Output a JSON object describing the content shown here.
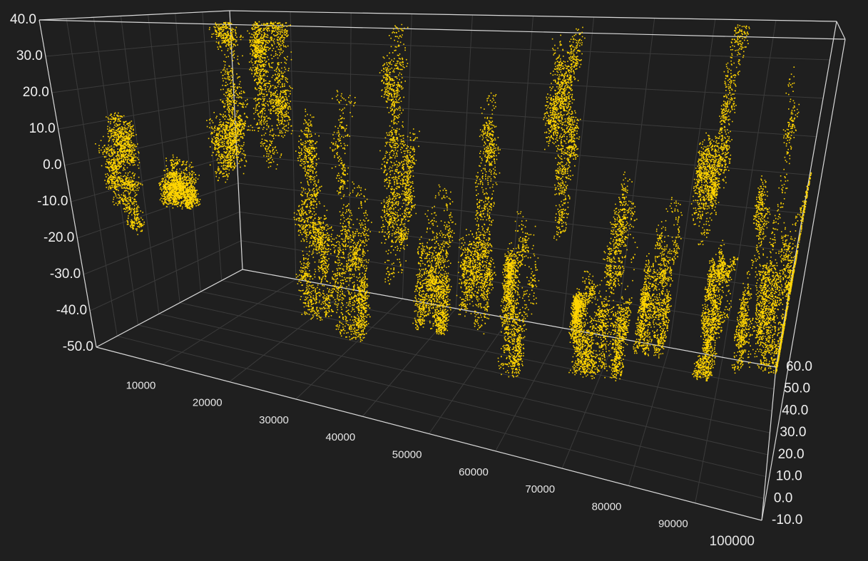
{
  "chart_data": {
    "type": "scatter",
    "projection": "3d",
    "title": "",
    "xlabel": "",
    "ylabel": "",
    "zlabel": "",
    "x_range": [
      0,
      100000
    ],
    "y_range": [
      -50,
      40
    ],
    "z_range": [
      -10,
      60
    ],
    "x_ticks": [
      "10000",
      "20000",
      "30000",
      "40000",
      "50000",
      "60000",
      "70000",
      "80000",
      "90000",
      "100000"
    ],
    "y_ticks": [
      "-50.0",
      "-40.0",
      "-30.0",
      "-20.0",
      "-10.0",
      "0.0",
      "10.0",
      "20.0",
      "30.0",
      "40.0"
    ],
    "z_ticks": [
      "-10.0",
      "0.0",
      "10.0",
      "20.0",
      "30.0",
      "40.0",
      "50.0",
      "60.0"
    ],
    "grid": true,
    "series": [
      {
        "color": "#ffd400",
        "points": 100000,
        "clusters": [
          {
            "x": 4000,
            "z": 0,
            "y_min": -24,
            "y_max": 14
          },
          {
            "x": 12000,
            "z": 0,
            "y_min": -10,
            "y_max": 22
          },
          {
            "x": 20000,
            "z": 0,
            "y_min": -30,
            "y_max": 40
          },
          {
            "x": 24000,
            "z": 8,
            "y_min": -30,
            "y_max": 40
          },
          {
            "x": 30000,
            "z": 5,
            "y_min": -35,
            "y_max": 40
          },
          {
            "x": 34000,
            "z": 10,
            "y_min": -40,
            "y_max": 40
          },
          {
            "x": 40000,
            "z": 15,
            "y_min": -40,
            "y_max": 40
          },
          {
            "x": 46000,
            "z": 12,
            "y_min": -35,
            "y_max": 40
          },
          {
            "x": 52000,
            "z": 15,
            "y_min": -42,
            "y_max": 40
          },
          {
            "x": 58000,
            "z": 20,
            "y_min": -45,
            "y_max": 40
          },
          {
            "x": 62000,
            "z": 22,
            "y_min": -25,
            "y_max": 40
          },
          {
            "x": 68000,
            "z": 28,
            "y_min": -45,
            "y_max": 5
          },
          {
            "x": 72000,
            "z": 30,
            "y_min": -45,
            "y_max": 40
          },
          {
            "x": 78000,
            "z": 35,
            "y_min": -40,
            "y_max": 40
          },
          {
            "x": 84000,
            "z": 40,
            "y_min": -48,
            "y_max": 40
          },
          {
            "x": 88000,
            "z": 45,
            "y_min": -48,
            "y_max": 0
          },
          {
            "x": 94000,
            "z": 52,
            "y_min": -48,
            "y_max": 40
          },
          {
            "x": 99000,
            "z": 58,
            "y_min": -50,
            "y_max": 40
          }
        ]
      }
    ]
  }
}
